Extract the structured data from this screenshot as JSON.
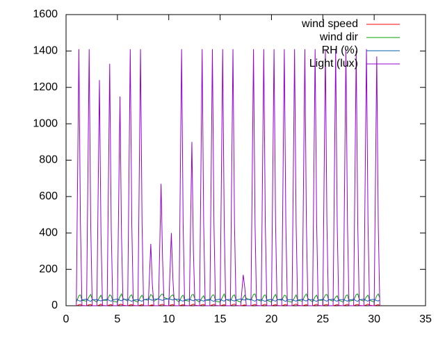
{
  "chart_data": {
    "type": "line",
    "x": [
      1,
      1.25,
      1.4,
      1.55,
      2,
      2.25,
      2.4,
      2.55,
      3,
      3.25,
      3.4,
      3.55,
      4,
      4.25,
      4.4,
      4.55,
      5,
      5.25,
      5.4,
      5.55,
      6,
      6.25,
      6.4,
      6.55,
      7,
      7.25,
      7.4,
      7.55,
      8,
      8.25,
      8.4,
      8.55,
      9,
      9.25,
      9.4,
      9.55,
      10,
      10.25,
      10.4,
      10.55,
      11,
      11.25,
      11.4,
      11.55,
      12,
      12.25,
      12.4,
      12.55,
      13,
      13.25,
      13.4,
      13.55,
      14,
      14.25,
      14.4,
      14.55,
      15,
      15.25,
      15.4,
      15.55,
      16,
      16.25,
      16.4,
      16.55,
      17,
      17.25,
      17.4,
      17.55,
      18,
      18.25,
      18.4,
      18.55,
      19,
      19.25,
      19.4,
      19.55,
      20,
      20.25,
      20.4,
      20.55,
      21,
      21.25,
      21.4,
      21.55,
      22,
      22.25,
      22.4,
      22.55,
      23,
      23.25,
      23.4,
      23.55,
      24,
      24.25,
      24.4,
      24.55,
      25,
      25.25,
      25.4,
      25.55,
      26,
      26.25,
      26.4,
      26.55,
      27,
      27.25,
      27.4,
      27.55,
      28,
      28.25,
      28.4,
      28.55,
      29,
      29.25,
      29.4,
      29.55,
      30,
      30.25,
      30.4,
      30.55
    ],
    "series": [
      {
        "name": "wind speed",
        "color": "#ff0000",
        "values": [
          0,
          5,
          8,
          2,
          0,
          6,
          7,
          1,
          0,
          4,
          9,
          2,
          0,
          5,
          6,
          1,
          0,
          7,
          8,
          3,
          0,
          5,
          6,
          2,
          0,
          4,
          7,
          1,
          0,
          3,
          5,
          1,
          0,
          6,
          8,
          2,
          0,
          5,
          7,
          1,
          0,
          4,
          6,
          2,
          0,
          5,
          9,
          3,
          0,
          6,
          7,
          1,
          0,
          5,
          8,
          2,
          0,
          4,
          6,
          1,
          0,
          7,
          9,
          2,
          0,
          3,
          5,
          1,
          0,
          5,
          7,
          2,
          0,
          6,
          8,
          1,
          0,
          4,
          6,
          2,
          0,
          5,
          7,
          1,
          0,
          6,
          9,
          3,
          0,
          4,
          6,
          1,
          0,
          5,
          8,
          2,
          0,
          6,
          7,
          1,
          0,
          4,
          6,
          2,
          0,
          5,
          8,
          1,
          0,
          6,
          7,
          2,
          0,
          5,
          9,
          3,
          0,
          4,
          6,
          1
        ]
      },
      {
        "name": "wind dir",
        "color": "#00a000",
        "values": [
          20,
          55,
          60,
          30,
          25,
          50,
          62,
          35,
          20,
          45,
          58,
          30,
          30,
          60,
          55,
          25,
          20,
          50,
          65,
          40,
          25,
          55,
          60,
          30,
          20,
          48,
          58,
          35,
          30,
          62,
          55,
          25,
          40,
          60,
          65,
          45,
          35,
          55,
          60,
          40,
          20,
          50,
          58,
          30,
          25,
          60,
          62,
          35,
          20,
          45,
          55,
          30,
          30,
          58,
          60,
          25,
          20,
          50,
          65,
          35,
          25,
          55,
          60,
          30,
          20,
          45,
          58,
          40,
          30,
          62,
          65,
          35,
          25,
          55,
          60,
          30,
          20,
          50,
          62,
          35,
          30,
          58,
          55,
          25,
          20,
          45,
          60,
          30,
          25,
          55,
          65,
          40,
          20,
          50,
          58,
          30,
          30,
          60,
          62,
          35,
          25,
          48,
          55,
          30,
          20,
          55,
          60,
          25,
          30,
          62,
          65,
          35,
          25,
          50,
          58,
          30,
          20,
          55,
          65,
          40
        ]
      },
      {
        "name": "RH (%)",
        "color": "#0060ad",
        "values": [
          35,
          28,
          25,
          32,
          36,
          27,
          24,
          33,
          34,
          29,
          26,
          31,
          35,
          28,
          25,
          32,
          37,
          30,
          27,
          34,
          35,
          28,
          24,
          31,
          34,
          27,
          25,
          32,
          38,
          33,
          30,
          36,
          37,
          32,
          29,
          35,
          38,
          34,
          31,
          36,
          35,
          28,
          25,
          32,
          36,
          30,
          27,
          33,
          34,
          28,
          25,
          31,
          35,
          27,
          24,
          32,
          36,
          28,
          25,
          33,
          35,
          28,
          26,
          32,
          37,
          33,
          31,
          35,
          35,
          28,
          25,
          32,
          34,
          27,
          24,
          31,
          35,
          28,
          25,
          32,
          36,
          27,
          24,
          33,
          34,
          28,
          25,
          31,
          35,
          28,
          26,
          32,
          34,
          27,
          24,
          31,
          35,
          28,
          25,
          32,
          36,
          27,
          25,
          33,
          34,
          28,
          25,
          31,
          35,
          27,
          24,
          32,
          36,
          28,
          25,
          33,
          35,
          28,
          26,
          32
        ]
      },
      {
        "name": "Light (lux)",
        "color": "#9400d3",
        "values": [
          0,
          1410,
          450,
          0,
          0,
          1410,
          450,
          0,
          0,
          1240,
          400,
          0,
          0,
          1330,
          420,
          0,
          0,
          1150,
          380,
          0,
          0,
          1410,
          450,
          0,
          0,
          1410,
          450,
          0,
          0,
          340,
          120,
          0,
          0,
          670,
          250,
          0,
          0,
          400,
          150,
          0,
          0,
          1410,
          450,
          0,
          0,
          900,
          300,
          0,
          0,
          1410,
          450,
          0,
          0,
          1410,
          450,
          0,
          0,
          1410,
          450,
          0,
          0,
          1410,
          450,
          0,
          0,
          170,
          100,
          0,
          0,
          1410,
          450,
          0,
          0,
          1410,
          450,
          0,
          0,
          1410,
          450,
          0,
          0,
          1410,
          450,
          0,
          0,
          1410,
          450,
          0,
          0,
          1410,
          450,
          0,
          0,
          1410,
          450,
          0,
          0,
          1410,
          450,
          0,
          0,
          1410,
          450,
          0,
          0,
          1410,
          450,
          0,
          0,
          1400,
          450,
          0,
          0,
          1410,
          450,
          0,
          0,
          1370,
          440,
          0
        ]
      }
    ],
    "xlim": [
      0,
      35
    ],
    "xticks": [
      0,
      5,
      10,
      15,
      20,
      25,
      30,
      35
    ],
    "ylim": [
      0,
      1600
    ],
    "yticks": [
      0,
      200,
      400,
      600,
      800,
      1000,
      1200,
      1400,
      1600
    ],
    "legend": "top-right"
  }
}
